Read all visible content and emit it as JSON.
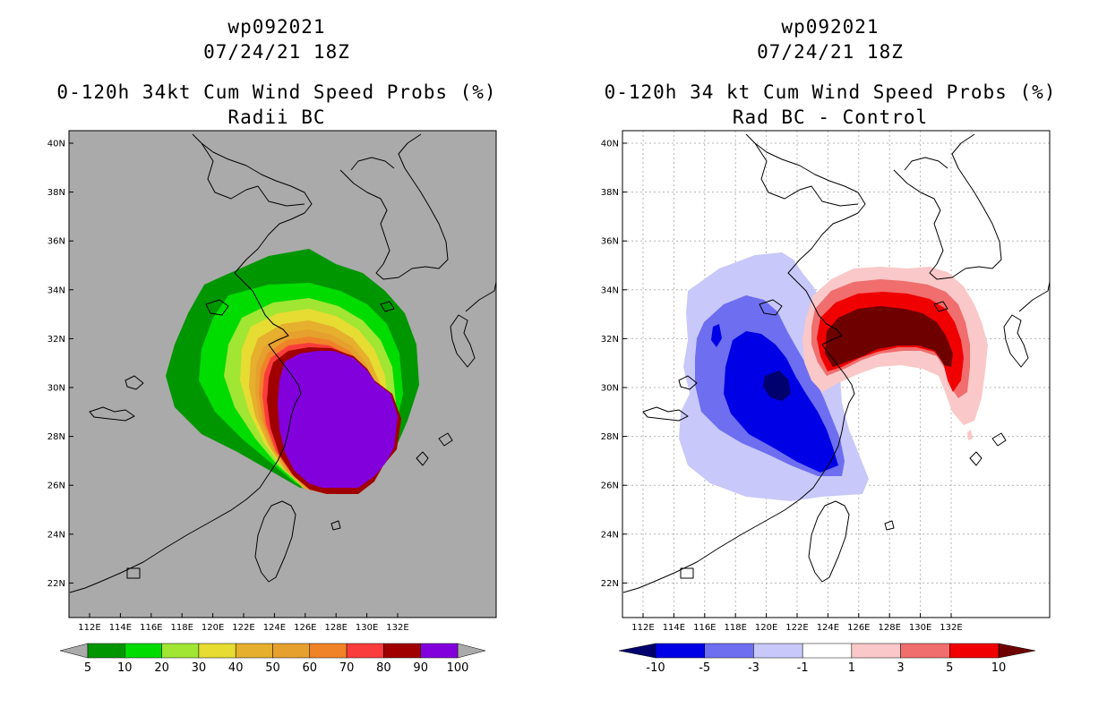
{
  "panels": [
    {
      "storm_id": "wp092021",
      "datetime": "07/24/21 18Z",
      "title": "0-120h 34kt Cum Wind Speed Probs (%)",
      "subtitle": "Radii BC",
      "background": "#aaaaaa",
      "colorbar": {
        "labels": [
          "5",
          "10",
          "20",
          "30",
          "40",
          "50",
          "60",
          "70",
          "80",
          "90",
          "100"
        ],
        "colors": [
          "#009600",
          "#00dc00",
          "#a0e632",
          "#e6dc32",
          "#e6af2d",
          "#e6a02d",
          "#f08228",
          "#fa3c3c",
          "#a00000",
          "#8200dc"
        ],
        "under": "#aaaaaa",
        "over": "#aaaaaa"
      }
    },
    {
      "storm_id": "wp092021",
      "datetime": "07/24/21 18Z",
      "title": "0-120h 34 kt Cum Wind Speed Probs (%)",
      "subtitle": "Rad BC - Control",
      "background": "#ffffff",
      "colorbar": {
        "labels": [
          "-10",
          "-5",
          "-3",
          "-1",
          "1",
          "3",
          "5",
          "10"
        ],
        "colors": [
          "#0000e6",
          "#6e6ef0",
          "#c8c8fa",
          "#ffffff",
          "#fac8c8",
          "#f06e6e",
          "#f00000"
        ],
        "under": "#00006e",
        "over": "#6e0000"
      }
    }
  ],
  "axes": {
    "lat_labels": [
      "40N",
      "38N",
      "36N",
      "34N",
      "32N",
      "30N",
      "28N",
      "26N",
      "24N",
      "22N"
    ],
    "lon_labels": [
      "112E",
      "114E",
      "116E",
      "118E",
      "120E",
      "122E",
      "124E",
      "126E",
      "128E",
      "130E",
      "132E"
    ]
  }
}
